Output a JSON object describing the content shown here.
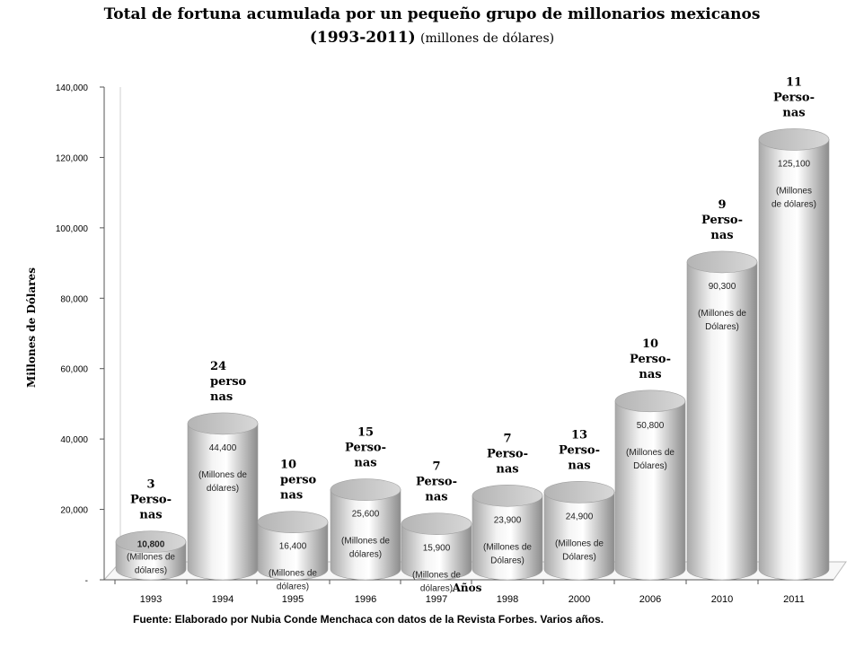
{
  "chart_data": {
    "type": "bar",
    "title_line1": "Total de fortuna acumulada por un pequeño grupo de millonarios mexicanos",
    "title_line2_bold": "(1993-2011)",
    "title_line2_small": "(millones de dólares)",
    "ylabel": "Millones de Dólares",
    "xlabel": "Años",
    "ylim": [
      0,
      140000
    ],
    "yticks": [
      "140,000",
      "120,000",
      "100,000",
      "80,000",
      "60,000",
      "40,000",
      "20,000",
      "-"
    ],
    "categories": [
      "1993",
      "1994",
      "1995",
      "1996",
      "1997",
      "1998",
      "2000",
      "2006",
      "2010",
      "2011"
    ],
    "values": [
      10800,
      44400,
      16400,
      25600,
      15900,
      23900,
      24900,
      50800,
      90300,
      125100
    ],
    "value_labels": [
      "10,800",
      "44,400",
      "16,400",
      "25,600",
      "15,900",
      "23,900",
      "24,900",
      "50,800",
      "90,300",
      "125,100"
    ],
    "unit_labels": [
      [
        "(Millones de",
        "dólares)"
      ],
      [
        "(Millones de",
        "dólares)"
      ],
      [
        "(Millones de",
        "dólares)"
      ],
      [
        "(Millones de",
        "dólares)"
      ],
      [
        "(Millones de",
        "dólares)"
      ],
      [
        "(Millones de",
        "Dólares)"
      ],
      [
        "(Millones de",
        "Dólares)"
      ],
      [
        "(Millones de",
        "Dólares)"
      ],
      [
        "(Millones de",
        "Dólares)"
      ],
      [
        "(Millones",
        "de dólares)"
      ]
    ],
    "annotations": [
      [
        "3",
        "Perso-",
        "nas"
      ],
      [
        "24",
        "perso",
        "nas"
      ],
      [
        "10",
        "perso",
        "nas"
      ],
      [
        "15",
        "Perso-",
        "nas"
      ],
      [
        "7",
        "Perso-",
        "nas"
      ],
      [
        "7",
        "Perso-",
        "nas"
      ],
      [
        "13",
        "Perso-",
        "nas"
      ],
      [
        "10",
        "Perso-",
        "nas"
      ],
      [
        "9",
        "Perso-",
        "nas"
      ],
      [
        "11",
        "Perso-",
        "nas"
      ]
    ],
    "grid": false,
    "legend": "none"
  },
  "source": "Fuente: Elaborado por Nubia Conde Menchaca con datos de la Revista Forbes. Varios años.",
  "colors": {
    "bar_light": "#ffffff",
    "bar_dark": "#9a9a9a",
    "bar_top": "#c8c8c8"
  }
}
